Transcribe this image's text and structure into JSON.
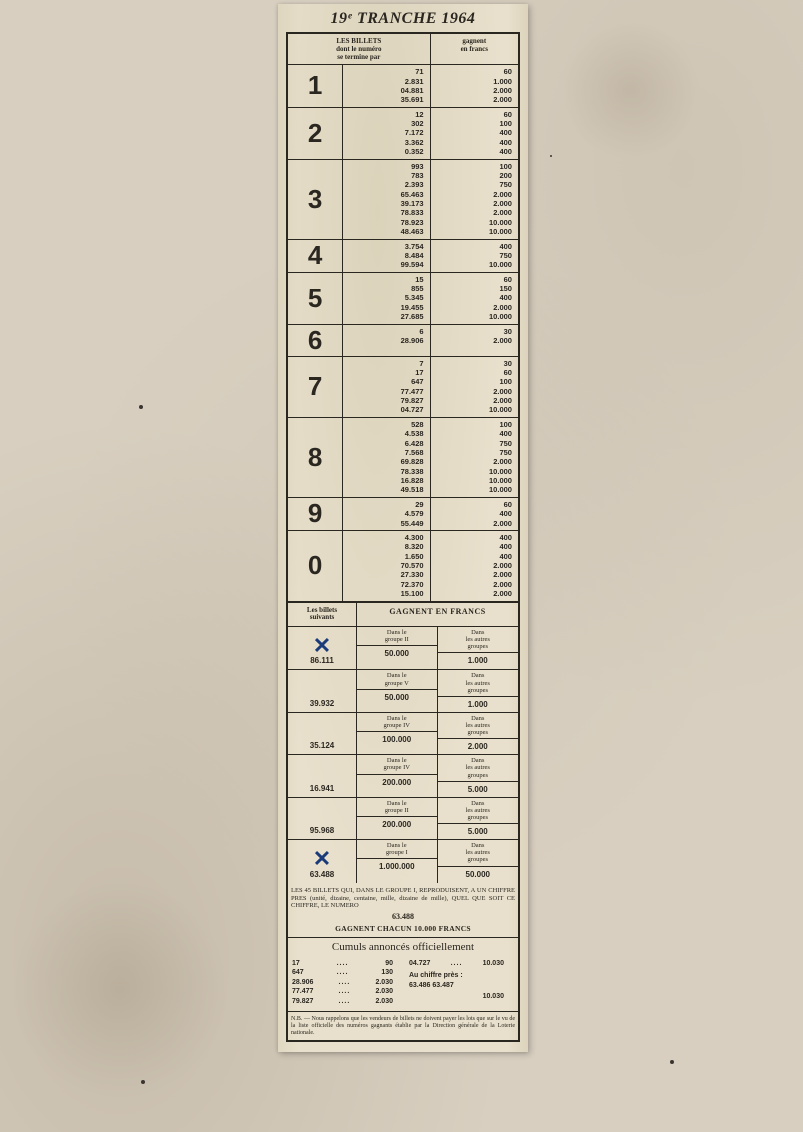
{
  "title": "19ᵉ TRANCHE 1964",
  "header": {
    "left": "LES BILLETS\ndont le numéro\nse termine par",
    "right": "gagnent\nen francs"
  },
  "digits": [
    {
      "d": "1",
      "nums": [
        "71",
        "2.831",
        "04.881",
        "35.691"
      ],
      "wins": [
        "60",
        "1.000",
        "2.000",
        "2.000"
      ]
    },
    {
      "d": "2",
      "nums": [
        "12",
        "302",
        "7.172",
        "3.362",
        "0.352"
      ],
      "wins": [
        "60",
        "100",
        "400",
        "400",
        "400"
      ]
    },
    {
      "d": "3",
      "nums": [
        "993",
        "783",
        "2.393",
        "65.463",
        "39.173",
        "78.833",
        "78.923",
        "48.463"
      ],
      "wins": [
        "100",
        "200",
        "750",
        "2.000",
        "2.000",
        "2.000",
        "10.000",
        "10.000"
      ]
    },
    {
      "d": "4",
      "nums": [
        "3.754",
        "8.484",
        "99.594"
      ],
      "wins": [
        "400",
        "750",
        "10.000"
      ]
    },
    {
      "d": "5",
      "nums": [
        "15",
        "855",
        "5.345",
        "19.455",
        "27.685"
      ],
      "wins": [
        "60",
        "150",
        "400",
        "2.000",
        "10.000"
      ]
    },
    {
      "d": "6",
      "nums": [
        "6",
        "28.906"
      ],
      "wins": [
        "30",
        "2.000"
      ]
    },
    {
      "d": "7",
      "nums": [
        "7",
        "17",
        "647",
        "77.477",
        "79.827",
        "04.727"
      ],
      "wins": [
        "30",
        "60",
        "100",
        "2.000",
        "2.000",
        "10.000"
      ]
    },
    {
      "d": "8",
      "nums": [
        "528",
        "4.538",
        "6.428",
        "7.568",
        "69.828",
        "78.338",
        "16.828",
        "49.518"
      ],
      "wins": [
        "100",
        "400",
        "750",
        "750",
        "2.000",
        "10.000",
        "10.000",
        "10.000"
      ]
    },
    {
      "d": "9",
      "nums": [
        "29",
        "4.579",
        "55.449"
      ],
      "wins": [
        "60",
        "400",
        "2.000"
      ]
    },
    {
      "d": "0",
      "nums": [
        "4.300",
        "8.320",
        "1.650",
        "70.570",
        "27.330",
        "72.370",
        "15.100"
      ],
      "wins": [
        "400",
        "400",
        "400",
        "2.000",
        "2.000",
        "2.000",
        "2.000"
      ]
    }
  ],
  "section2": {
    "left_head": "Les billets\nsuivants",
    "right_head": "GAGNENT EN FRANCS",
    "other_label": "Dans\nles autres\ngroupes",
    "rows": [
      {
        "ticket": "86.111",
        "cross": true,
        "group_label": "Dans le\ngroupe II",
        "group_win": "50.000",
        "other_win": "1.000"
      },
      {
        "ticket": "39.932",
        "cross": false,
        "group_label": "Dans le\ngroupe V",
        "group_win": "50.000",
        "other_win": "1.000"
      },
      {
        "ticket": "35.124",
        "cross": false,
        "group_label": "Dans le\ngroupe IV",
        "group_win": "100.000",
        "other_win": "2.000"
      },
      {
        "ticket": "16.941",
        "cross": false,
        "group_label": "Dans le\ngroupe IV",
        "group_win": "200.000",
        "other_win": "5.000"
      },
      {
        "ticket": "95.968",
        "cross": false,
        "group_label": "Dans le\ngroupe II",
        "group_win": "200.000",
        "other_win": "5.000"
      },
      {
        "ticket": "63.488",
        "cross": true,
        "group_label": "Dans le\ngroupe I",
        "group_win": "1.000.000",
        "other_win": "50.000"
      }
    ]
  },
  "note45": {
    "text": "LES 45 BILLETS QUI, DANS LE GROUPE I, REPRODUISENT, A UN CHIFFRE PRES (unité, dizaine, centaine, mille, dizaine de mille), QUEL QUE SOIT CE CHIFFRE, LE NUMERO",
    "num": "63.488",
    "gag": "GAGNENT CHACUN 10.000 FRANCS"
  },
  "cumuls": {
    "title": "Cumuls annoncés officiellement",
    "left": [
      {
        "a": "17",
        "b": "90"
      },
      {
        "a": "647",
        "b": "130"
      },
      {
        "a": "28.906",
        "b": "2.030"
      },
      {
        "a": "77.477",
        "b": "2.030"
      },
      {
        "a": "79.827",
        "b": "2.030"
      }
    ],
    "right_top": {
      "a": "04.727",
      "b": "10.030"
    },
    "right_label": "Au chiffre près :",
    "right_nums": "63.486  63.487",
    "right_val": "10.030"
  },
  "nb": "N.B. — Nous rappelons que les vendeurs de billets ne doivent payer les lots que sur le vu de la liste officielle des numéros gagnants établie par la Direction générale de la Loterie nationale."
}
